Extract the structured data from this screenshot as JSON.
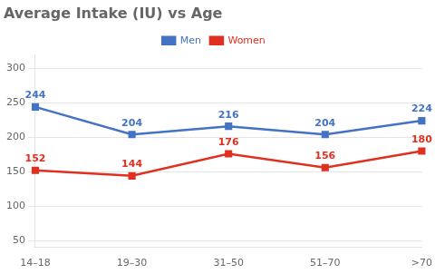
{
  "chart_data": {
    "type": "line",
    "title": "Average Intake (IU) vs Age",
    "categories": [
      "14–18",
      "19–30",
      "31–50",
      "51–70",
      ">70"
    ],
    "series": [
      {
        "name": "Men",
        "color": "#4472C4",
        "values": [
          244,
          204,
          216,
          204,
          224
        ]
      },
      {
        "name": "Women",
        "color": "#E03020",
        "values": [
          152,
          144,
          176,
          156,
          180
        ]
      }
    ],
    "ylim": [
      40,
      320
    ],
    "yticks": [
      50,
      100,
      150,
      200,
      250,
      300
    ],
    "grid": true,
    "legend": "top",
    "data_labels": true,
    "marker": "square"
  }
}
